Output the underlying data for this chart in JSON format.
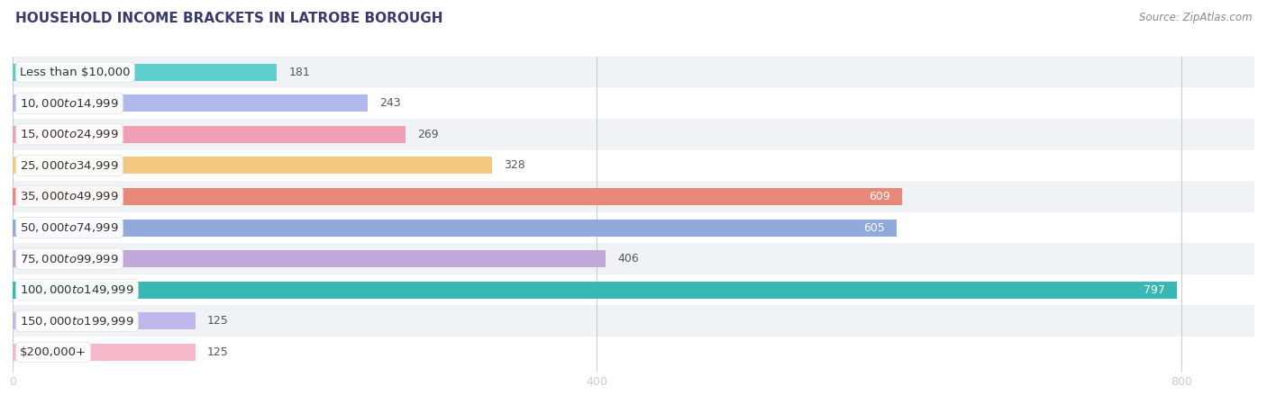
{
  "title": "HOUSEHOLD INCOME BRACKETS IN LATROBE BOROUGH",
  "source": "Source: ZipAtlas.com",
  "categories": [
    "Less than $10,000",
    "$10,000 to $14,999",
    "$15,000 to $24,999",
    "$25,000 to $34,999",
    "$35,000 to $49,999",
    "$50,000 to $74,999",
    "$75,000 to $99,999",
    "$100,000 to $149,999",
    "$150,000 to $199,999",
    "$200,000+"
  ],
  "values": [
    181,
    243,
    269,
    328,
    609,
    605,
    406,
    797,
    125,
    125
  ],
  "bar_colors": [
    "#5ecece",
    "#b0b8ec",
    "#f0a0b5",
    "#f5c882",
    "#e88878",
    "#90aadc",
    "#c0a8d8",
    "#38b8b5",
    "#c0b8ec",
    "#f8b8cc"
  ],
  "bar_label_colors": [
    "#666666",
    "#666666",
    "#666666",
    "#666666",
    "#ffffff",
    "#ffffff",
    "#666666",
    "#ffffff",
    "#666666",
    "#666666"
  ],
  "xlim_max": 850,
  "xticks": [
    0,
    400,
    800
  ],
  "background_color": "#ffffff",
  "row_bg_even": "#f0f2f5",
  "row_bg_odd": "#ffffff",
  "title_fontsize": 11,
  "source_fontsize": 8.5,
  "label_fontsize": 9.5,
  "value_fontsize": 9,
  "tick_fontsize": 9,
  "bar_height": 0.55
}
